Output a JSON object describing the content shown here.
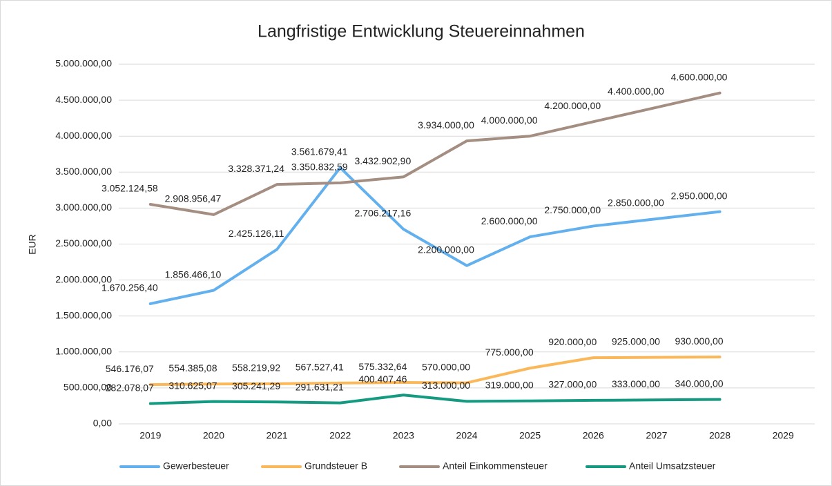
{
  "chart_data": {
    "type": "line",
    "title": "Langfristige Entwicklung Steuereinnahmen",
    "y_label": "EUR",
    "categories": [
      "2019",
      "2020",
      "2021",
      "2022",
      "2023",
      "2024",
      "2025",
      "2026",
      "2027",
      "2028",
      "2029"
    ],
    "ylim": [
      0,
      5000000
    ],
    "yticks": [
      {
        "value": 0,
        "label": "0,00"
      },
      {
        "value": 500000,
        "label": "500.000,00"
      },
      {
        "value": 1000000,
        "label": "1.000.000,00"
      },
      {
        "value": 1500000,
        "label": "1.500.000,00"
      },
      {
        "value": 2000000,
        "label": "2.000.000,00"
      },
      {
        "value": 2500000,
        "label": "2.500.000,00"
      },
      {
        "value": 3000000,
        "label": "3.000.000,00"
      },
      {
        "value": 3500000,
        "label": "3.500.000,00"
      },
      {
        "value": 4000000,
        "label": "4.000.000,00"
      },
      {
        "value": 4500000,
        "label": "4.500.000,00"
      },
      {
        "value": 5000000,
        "label": "5.000.000,00"
      }
    ],
    "grid": true,
    "legend": "bottom",
    "series": [
      {
        "name": "Gewerbesteuer",
        "color": "#63b0ee",
        "values": [
          1670256.4,
          1856466.1,
          2425126.11,
          3561679.41,
          2706217.16,
          2200000,
          2600000,
          2750000,
          2850000,
          2950000,
          null
        ],
        "value_labels": [
          "1.670.256,40",
          "1.856.466,10",
          "2.425.126,11",
          "3.561.679,41",
          "2.706.217,16",
          "2.200.000,00",
          "2.600.000,00",
          "2.750.000,00",
          "2.850.000,00",
          "2.950.000,00",
          null
        ]
      },
      {
        "name": "Grundsteuer B",
        "color": "#fbb85a",
        "values": [
          546176.07,
          554385.08,
          558219.92,
          567527.41,
          575332.64,
          570000,
          775000,
          920000,
          925000,
          930000,
          null
        ],
        "value_labels": [
          "546.176,07",
          "554.385,08",
          "558.219,92",
          "567.527,41",
          "575.332,64",
          "570.000,00",
          "775.000,00",
          "920.000,00",
          "925.000,00",
          "930.000,00",
          null
        ]
      },
      {
        "name": "Anteil Einkommensteuer",
        "color": "#a48e82",
        "values": [
          3052124.58,
          2908956.47,
          3328371.24,
          3350832.59,
          3432902.9,
          3934000,
          4000000,
          4200000,
          4400000,
          4600000,
          null
        ],
        "value_labels": [
          "3.052.124,58",
          "2.908.956,47",
          "3.328.371,24",
          "3.350.832,59",
          "3.432.902,90",
          "3.934.000,00",
          "4.000.000,00",
          "4.200.000,00",
          "4.400.000,00",
          "4.600.000,00",
          null
        ]
      },
      {
        "name": "Anteil Umsatzsteuer",
        "color": "#149a80",
        "values": [
          282078.07,
          310625.07,
          305241.29,
          291631.21,
          400407.46,
          313000,
          319000,
          327000,
          333000,
          340000,
          null
        ],
        "value_labels": [
          "282.078,07",
          "310.625,07",
          "305.241,29",
          "291.631,21",
          "400.407,46",
          "313.000,00",
          "319.000,00",
          "327.000,00",
          "333.000,00",
          "340.000,00",
          null
        ]
      }
    ]
  }
}
